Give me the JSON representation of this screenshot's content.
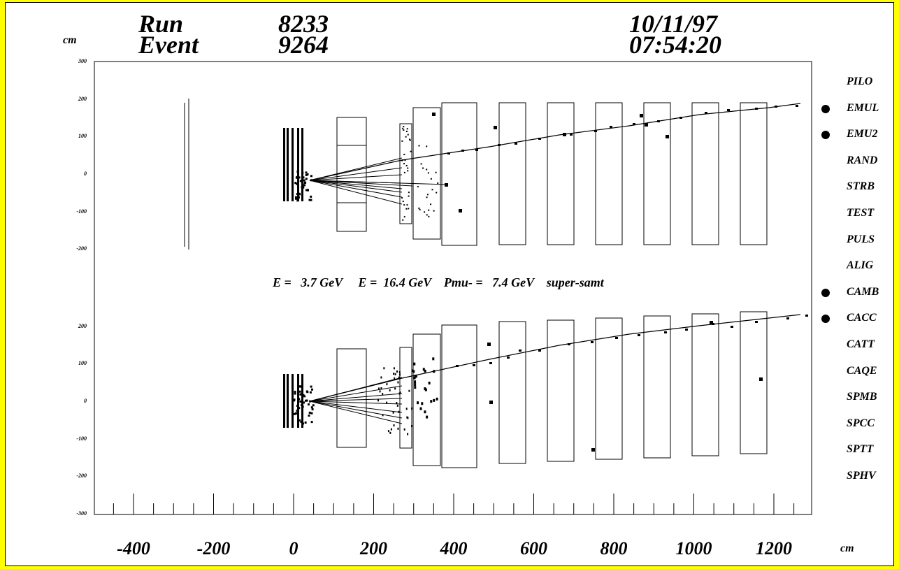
{
  "header": {
    "run_label": "Run",
    "run_value": "8233",
    "event_label": "Event",
    "event_value": "9264",
    "date": "10/11/97",
    "time": "07:54:20"
  },
  "y_unit": "cm",
  "x_unit": "cm",
  "x_axis": {
    "ticks": [
      "-400",
      "-200",
      "0",
      "200",
      "400",
      "600",
      "800",
      "1000",
      "1200"
    ]
  },
  "top_view": {
    "y_ticks": [
      "300",
      "200",
      "100",
      "0",
      "-100",
      "-200"
    ]
  },
  "bottom_view": {
    "y_ticks": [
      "200",
      "100",
      "0",
      "-100",
      "-200",
      "-300"
    ]
  },
  "energy_line": "E =   3.7 GeV     E =  16.4 GeV    Pmu- =   7.4 GeV    super-samt",
  "triggers": [
    {
      "label": "PILO",
      "active": false
    },
    {
      "label": "EMUL",
      "active": true
    },
    {
      "label": "EMU2",
      "active": true
    },
    {
      "label": "RAND",
      "active": false
    },
    {
      "label": "STRB",
      "active": false
    },
    {
      "label": "TEST",
      "active": false
    },
    {
      "label": "PULS",
      "active": false
    },
    {
      "label": "ALIG",
      "active": false
    },
    {
      "label": "CAMB",
      "active": true
    },
    {
      "label": "CACC",
      "active": true
    },
    {
      "label": "CATT",
      "active": false
    },
    {
      "label": "CAQE",
      "active": false
    },
    {
      "label": "SPMB",
      "active": false
    },
    {
      "label": "SPCC",
      "active": false
    },
    {
      "label": "SPTT",
      "active": false
    },
    {
      "label": "SPHV",
      "active": false
    }
  ],
  "colors": {
    "background": "#ffff00",
    "panel": "#ffffff",
    "ink": "#000000"
  }
}
